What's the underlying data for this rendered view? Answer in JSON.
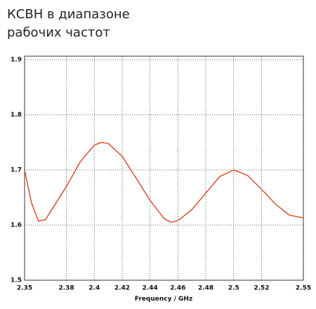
{
  "chart_data": {
    "type": "line",
    "title": [
      "КСВН в диапазоне",
      "рабочих частот"
    ],
    "x_label": "Frequency / GHz",
    "x": [
      2.35,
      2.355,
      2.36,
      2.365,
      2.37,
      2.38,
      2.39,
      2.4,
      2.405,
      2.41,
      2.42,
      2.43,
      2.44,
      2.45,
      2.455,
      2.46,
      2.47,
      2.48,
      2.49,
      2.5,
      2.51,
      2.52,
      2.53,
      2.54,
      2.55
    ],
    "series": [
      {
        "color": "#d9502e",
        "values": [
          1.7,
          1.64,
          1.607,
          1.61,
          1.63,
          1.67,
          1.715,
          1.745,
          1.75,
          1.748,
          1.725,
          1.685,
          1.645,
          1.612,
          1.605,
          1.608,
          1.628,
          1.658,
          1.688,
          1.7,
          1.69,
          1.665,
          1.638,
          1.618,
          1.613
        ]
      }
    ],
    "xlim": [
      2.35,
      2.55
    ],
    "xticks": [
      2.35,
      2.38,
      2.4,
      2.42,
      2.44,
      2.46,
      2.48,
      2.5,
      2.52,
      2.55
    ],
    "ylim": [
      1.5,
      1.9
    ],
    "yticks": [
      1.5,
      1.6,
      1.7,
      1.8,
      1.9
    ],
    "grid": true
  }
}
